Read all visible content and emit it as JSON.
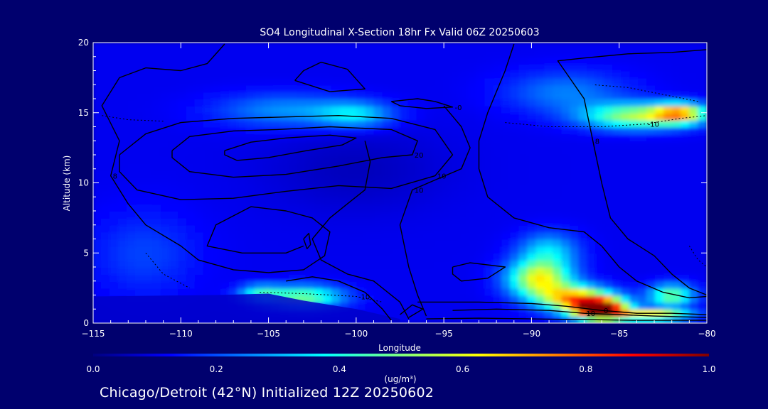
{
  "footer": "Chicago/Detroit (42°N) Initialized 12Z 20250602",
  "chart_data": {
    "type": "heatmap",
    "title": "SO4 Longitudinal X-Section 18hr  Fx Valid 06Z 20250603",
    "xlabel": "Longitude",
    "ylabel": "Altitude (km)",
    "xlim": [
      -115,
      -80
    ],
    "ylim": [
      0,
      20
    ],
    "x_ticks": [
      -115,
      -110,
      -105,
      -100,
      -95,
      -90,
      -85,
      -80
    ],
    "x_tick_labels": [
      "−115",
      "−110",
      "−105",
      "−100",
      "−95",
      "−90",
      "−85",
      "−80"
    ],
    "y_ticks": [
      0,
      5,
      10,
      15,
      20
    ],
    "y_tick_labels": [
      "0",
      "5",
      "10",
      "15",
      "20"
    ],
    "colorbar": {
      "label": "(ug/m³)",
      "range": [
        0,
        1
      ],
      "ticks": [
        0,
        0.2,
        0.4,
        0.6,
        0.8,
        1
      ],
      "tick_labels": [
        "0.0",
        "0.2",
        "0.4",
        "0.6",
        "0.8",
        "1.0"
      ],
      "colors": [
        "#00007f",
        "#0000ff",
        "#007fff",
        "#00ffff",
        "#7fff7f",
        "#ffff00",
        "#ff7f00",
        "#ff0000",
        "#7f0000"
      ]
    },
    "field_blobs": [
      {
        "lon": -100,
        "alt": 14.9,
        "value": 0.22,
        "sx": 2.2,
        "sy": 0.9
      },
      {
        "lon": -104,
        "alt": 15.2,
        "value": 0.16,
        "sx": 4.0,
        "sy": 1.2
      },
      {
        "lon": -84,
        "alt": 14.8,
        "value": 0.42,
        "sx": 3.0,
        "sy": 0.9
      },
      {
        "lon": -81.5,
        "alt": 15.0,
        "value": 0.48,
        "sx": 1.5,
        "sy": 0.7
      },
      {
        "lon": -88,
        "alt": 16.5,
        "value": 0.14,
        "sx": 3.5,
        "sy": 1.5
      },
      {
        "lon": -103,
        "alt": 1.9,
        "value": 0.38,
        "sx": 2.3,
        "sy": 0.8
      },
      {
        "lon": -105.5,
        "alt": 2.2,
        "value": 0.22,
        "sx": 1.2,
        "sy": 0.6
      },
      {
        "lon": -89.5,
        "alt": 3.2,
        "value": 0.5,
        "sx": 1.8,
        "sy": 1.3
      },
      {
        "lon": -89,
        "alt": 5.2,
        "value": 0.22,
        "sx": 1.7,
        "sy": 1.3
      },
      {
        "lon": -86,
        "alt": 1.0,
        "value": 0.95,
        "sx": 1.5,
        "sy": 0.8
      },
      {
        "lon": -87.5,
        "alt": 1.8,
        "value": 0.55,
        "sx": 2.0,
        "sy": 0.9
      },
      {
        "lon": -82,
        "alt": 2.0,
        "value": 0.38,
        "sx": 1.3,
        "sy": 0.8
      },
      {
        "lon": -83,
        "alt": 0.6,
        "value": 0.55,
        "sx": 2.0,
        "sy": 0.4
      },
      {
        "lon": -112,
        "alt": 5.0,
        "value": 0.08,
        "sx": 3.0,
        "sy": 3.0
      },
      {
        "lon": -100,
        "alt": 11.0,
        "value": -0.05,
        "sx": 5.0,
        "sy": 3.0
      }
    ],
    "contours": [
      {
        "label": "20",
        "path": [
          [
            -110.5,
            12.3
          ],
          [
            -109.5,
            13.3
          ],
          [
            -107,
            13.7
          ],
          [
            -104.5,
            13.8
          ],
          [
            -101.5,
            14.0
          ],
          [
            -98,
            13.8
          ],
          [
            -96.5,
            13.0
          ],
          [
            -96.8,
            12.0
          ],
          [
            -98.5,
            11.8
          ],
          [
            -101,
            11.2
          ],
          [
            -104,
            10.6
          ],
          [
            -107,
            10.4
          ],
          [
            -109.5,
            10.8
          ],
          [
            -110.5,
            11.8
          ],
          [
            -110.5,
            12.3
          ]
        ]
      },
      {
        "label": "",
        "path": [
          [
            -107.5,
            12.3
          ],
          [
            -106,
            12.9
          ],
          [
            -104,
            13.2
          ],
          [
            -101.5,
            13.4
          ],
          [
            -100,
            13.2
          ],
          [
            -100.8,
            12.7
          ],
          [
            -102.8,
            12.3
          ],
          [
            -105,
            11.8
          ],
          [
            -106.8,
            11.6
          ],
          [
            -107.5,
            12.0
          ],
          [
            -107.5,
            12.3
          ]
        ]
      },
      {
        "label": "10",
        "path": [
          [
            -113.5,
            12.0
          ],
          [
            -112,
            13.5
          ],
          [
            -110,
            14.3
          ],
          [
            -107,
            14.6
          ],
          [
            -104,
            14.7
          ],
          [
            -101,
            14.8
          ],
          [
            -98,
            14.6
          ],
          [
            -95.5,
            13.8
          ],
          [
            -94.5,
            12.0
          ],
          [
            -95.5,
            10.5
          ],
          [
            -98,
            9.6
          ],
          [
            -101,
            9.8
          ],
          [
            -104,
            9.4
          ],
          [
            -107,
            8.9
          ],
          [
            -110,
            8.8
          ],
          [
            -112.5,
            9.5
          ],
          [
            -113.5,
            10.8
          ],
          [
            -113.5,
            12.0
          ]
        ]
      },
      {
        "label": "-0",
        "path": [
          [
            -98,
            15.8
          ],
          [
            -96.5,
            16.0
          ],
          [
            -95.5,
            15.8
          ],
          [
            -94.5,
            15.4
          ],
          [
            -96,
            15.3
          ],
          [
            -97.5,
            15.5
          ],
          [
            -98,
            15.8
          ]
        ]
      },
      {
        "label": "",
        "path": [
          [
            -103.5,
            17.3
          ],
          [
            -103,
            18.0
          ],
          [
            -102,
            18.6
          ],
          [
            -100.5,
            18.1
          ],
          [
            -99.5,
            16.7
          ],
          [
            -101.5,
            16.5
          ],
          [
            -103.5,
            17.3
          ]
        ]
      },
      {
        "label": "8",
        "path": [
          [
            -107.5,
            19.9
          ],
          [
            -108.5,
            18.5
          ],
          [
            -110,
            18.0
          ],
          [
            -112,
            18.2
          ],
          [
            -113.5,
            17.5
          ],
          [
            -114.5,
            15.5
          ],
          [
            -113.5,
            13.0
          ],
          [
            -114,
            10.5
          ],
          [
            -113,
            8.5
          ],
          [
            -112,
            7.0
          ],
          [
            -110,
            5.5
          ],
          [
            -109,
            4.5
          ],
          [
            -107,
            3.8
          ],
          [
            -105,
            3.6
          ],
          [
            -103,
            3.8
          ]
        ]
      },
      {
        "label": "",
        "path": [
          [
            -103,
            3.8
          ],
          [
            -101.8,
            4.8
          ],
          [
            -101.5,
            6.5
          ],
          [
            -102.5,
            7.5
          ],
          [
            -104,
            8.0
          ],
          [
            -106,
            8.3
          ],
          [
            -108,
            7.0
          ],
          [
            -108.5,
            5.5
          ],
          [
            -106.5,
            5.0
          ],
          [
            -104,
            5.0
          ],
          [
            -103,
            5.5
          ]
        ]
      },
      {
        "label": "10",
        "path": [
          [
            -95,
            15.5
          ],
          [
            -94,
            14.0
          ],
          [
            -93.5,
            12.5
          ],
          [
            -94,
            11.0
          ],
          [
            -95.5,
            10.2
          ],
          [
            -96.8,
            9.5
          ],
          [
            -97.5,
            7.0
          ],
          [
            -97.0,
            4.0
          ],
          [
            -96.5,
            2.0
          ],
          [
            -96,
            0.5
          ]
        ]
      },
      {
        "label": "",
        "path": [
          [
            -99.5,
            13.0
          ],
          [
            -99.2,
            11.5
          ],
          [
            -99.5,
            9.5
          ],
          [
            -100.5,
            8.5
          ],
          [
            -101.5,
            7.5
          ],
          [
            -102.5,
            6.0
          ],
          [
            -102.0,
            4.5
          ],
          [
            -100.5,
            3.5
          ],
          [
            -99,
            3.0
          ],
          [
            -97.5,
            1.5
          ],
          [
            -97,
            0.3
          ]
        ]
      },
      {
        "label": "",
        "path": [
          [
            -104,
            3.0
          ],
          [
            -102.5,
            3.3
          ],
          [
            -101,
            3.0
          ],
          [
            -99.5,
            2.2
          ],
          [
            -98.5,
            1.0
          ],
          [
            -98,
            0.2
          ]
        ]
      },
      {
        "label": "",
        "path": [
          [
            -94.5,
            4.0
          ],
          [
            -93.5,
            4.3
          ],
          [
            -91.5,
            4.0
          ],
          [
            -92.5,
            3.2
          ],
          [
            -94,
            3.0
          ],
          [
            -94.5,
            3.5
          ],
          [
            -94.5,
            4.0
          ]
        ]
      },
      {
        "label": "",
        "path": [
          [
            -103,
            6.0
          ],
          [
            -102.7,
            6.4
          ],
          [
            -102.6,
            5.6
          ],
          [
            -102.8,
            5.3
          ],
          [
            -103,
            6.0
          ]
        ]
      },
      {
        "label": "",
        "path": [
          [
            -91,
            19.9
          ],
          [
            -91.5,
            18.0
          ],
          [
            -92,
            16.5
          ],
          [
            -92.5,
            15.0
          ],
          [
            -93.0,
            13.0
          ],
          [
            -93.0,
            11.0
          ],
          [
            -92.5,
            9.0
          ],
          [
            -91,
            7.5
          ],
          [
            -89,
            6.8
          ],
          [
            -87,
            6.5
          ],
          [
            -86,
            5.5
          ],
          [
            -85,
            4.0
          ],
          [
            -84,
            3.0
          ],
          [
            -82.5,
            2.2
          ],
          [
            -81,
            1.8
          ],
          [
            -80,
            1.9
          ]
        ]
      },
      {
        "label": "8",
        "path": [
          [
            -80,
            19.5
          ],
          [
            -82,
            19.3
          ],
          [
            -84.5,
            19.2
          ],
          [
            -87,
            18.9
          ],
          [
            -88.5,
            18.7
          ],
          [
            -88,
            17.8
          ],
          [
            -87,
            16.0
          ],
          [
            -86.5,
            13.0
          ],
          [
            -86.0,
            10.0
          ],
          [
            -85.5,
            7.5
          ],
          [
            -84.5,
            6.0
          ],
          [
            -83,
            4.8
          ],
          [
            -82,
            3.5
          ],
          [
            -81,
            2.5
          ],
          [
            -80,
            2.0
          ]
        ]
      },
      {
        "label": "0",
        "path": [
          [
            -96.5,
            1.5
          ],
          [
            -93,
            1.5
          ],
          [
            -90,
            1.4
          ],
          [
            -88,
            1.2
          ],
          [
            -86,
            0.9
          ],
          [
            -84,
            0.7
          ],
          [
            -82,
            0.7
          ],
          [
            -80,
            0.6
          ]
        ]
      },
      {
        "label": "10",
        "path": [
          [
            -94.5,
            0.9
          ],
          [
            -92,
            1.0
          ],
          [
            -89,
            0.9
          ],
          [
            -87,
            0.7
          ],
          [
            -85,
            0.6
          ],
          [
            -83,
            0.5
          ],
          [
            -80,
            0.4
          ]
        ]
      },
      {
        "label": "",
        "path": [
          [
            -96,
            0.3
          ],
          [
            -93,
            0.35
          ],
          [
            -90,
            0.3
          ],
          [
            -87,
            0.25
          ],
          [
            -84,
            0.2
          ],
          [
            -80,
            0.2
          ]
        ]
      },
      {
        "label": "",
        "path": [
          [
            -97.5,
            0.6
          ],
          [
            -96.8,
            1.3
          ],
          [
            -96.2,
            1.0
          ],
          [
            -97.0,
            0.4
          ]
        ]
      }
    ],
    "dotted_contours": [
      {
        "label": "-10",
        "path": [
          [
            -105.5,
            2.2
          ],
          [
            -103,
            2.1
          ],
          [
            -100,
            1.9
          ],
          [
            -98.5,
            1.5
          ]
        ]
      },
      {
        "label": "-10",
        "path": [
          [
            -91.5,
            14.3
          ],
          [
            -89,
            14.0
          ],
          [
            -86,
            14.0
          ],
          [
            -83.5,
            14.2
          ],
          [
            -81.5,
            14.6
          ],
          [
            -80,
            14.8
          ]
        ]
      },
      {
        "label": "",
        "path": [
          [
            -114.5,
            14.8
          ],
          [
            -113,
            14.5
          ],
          [
            -111,
            14.4
          ]
        ]
      },
      {
        "label": "",
        "path": [
          [
            -80.5,
            15.8
          ],
          [
            -82.5,
            16.3
          ],
          [
            -84.5,
            16.8
          ],
          [
            -86.5,
            17.0
          ]
        ]
      },
      {
        "label": "",
        "path": [
          [
            -112,
            5.0
          ],
          [
            -111,
            3.5
          ],
          [
            -109.5,
            2.5
          ]
        ]
      },
      {
        "label": "",
        "path": [
          [
            -81,
            5.5
          ],
          [
            -80.5,
            4.5
          ],
          [
            -80,
            4.0
          ]
        ]
      }
    ]
  }
}
